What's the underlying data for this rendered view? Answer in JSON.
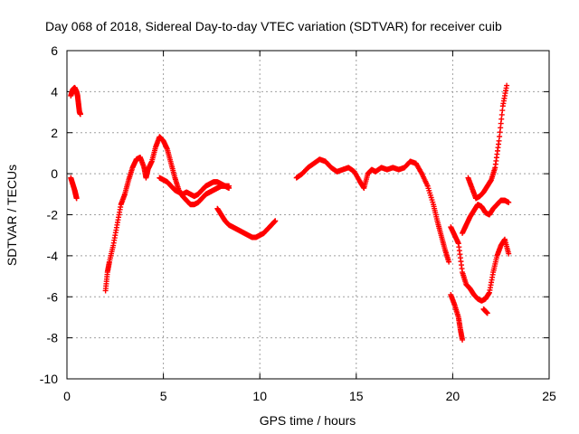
{
  "chart_data": {
    "type": "scatter",
    "title": "Day 068 of 2018, Sidereal Day-to-day VTEC variation (SDTVAR) for receiver cuib",
    "xlabel": "GPS time / hours",
    "ylabel": "SDTVAR / TECUs",
    "xlim": [
      0,
      25
    ],
    "ylim": [
      -10,
      6
    ],
    "xticks": [
      0,
      5,
      10,
      15,
      20,
      25
    ],
    "yticks": [
      -10,
      -8,
      -6,
      -4,
      -2,
      0,
      2,
      4,
      6
    ],
    "grid": true,
    "marker": "+",
    "color": "#ff0000",
    "series": [
      {
        "name": "seg1",
        "x": [
          0.2,
          0.3,
          0.4,
          0.5,
          0.55,
          0.6,
          0.65,
          0.7
        ],
        "y": [
          3.8,
          4.1,
          4.2,
          4.0,
          3.8,
          3.4,
          3.0,
          2.9
        ]
      },
      {
        "name": "seg2",
        "x": [
          0.2,
          0.3,
          0.4,
          0.45,
          0.5
        ],
        "y": [
          -0.2,
          -0.5,
          -0.8,
          -1.0,
          -1.2
        ]
      },
      {
        "name": "seg3",
        "x": [
          2.0,
          2.1,
          2.2,
          2.4,
          2.6,
          2.8,
          3.0,
          3.2,
          3.4,
          3.6,
          3.8,
          4.0,
          4.1,
          4.2,
          4.4,
          4.6,
          4.8,
          5.0,
          5.2,
          5.4,
          5.6,
          5.8,
          6.0,
          6.2,
          6.4,
          6.6,
          6.8,
          7.0,
          7.2,
          7.4,
          7.6,
          7.8,
          8.0,
          8.2,
          8.4
        ],
        "y": [
          -5.7,
          -4.8,
          -4.3,
          -3.5,
          -2.5,
          -1.5,
          -1.0,
          -0.3,
          0.3,
          0.7,
          0.8,
          0.3,
          -0.2,
          0.2,
          0.6,
          1.3,
          1.8,
          1.6,
          1.2,
          0.5,
          -0.2,
          -0.8,
          -1.1,
          -1.3,
          -1.5,
          -1.5,
          -1.4,
          -1.2,
          -1.0,
          -0.9,
          -0.8,
          -0.7,
          -0.6,
          -0.6,
          -0.7
        ]
      },
      {
        "name": "seg4",
        "x": [
          4.8,
          5.0,
          5.2,
          5.4,
          5.6,
          5.8,
          6.0,
          6.2,
          6.4,
          6.6,
          6.8,
          7.0,
          7.2,
          7.4,
          7.6,
          7.8,
          8.0,
          8.2,
          8.4
        ],
        "y": [
          -0.2,
          -0.3,
          -0.4,
          -0.6,
          -0.8,
          -0.9,
          -1.0,
          -0.9,
          -1.0,
          -1.1,
          -1.0,
          -0.8,
          -0.6,
          -0.5,
          -0.4,
          -0.4,
          -0.5,
          -0.6,
          -0.6
        ]
      },
      {
        "name": "seg5",
        "x": [
          7.8,
          8.0,
          8.2,
          8.4,
          8.6,
          8.8,
          9.0,
          9.2,
          9.4,
          9.6,
          9.8,
          10.0,
          10.2,
          10.4,
          10.6,
          10.8
        ],
        "y": [
          -1.7,
          -2.0,
          -2.3,
          -2.5,
          -2.6,
          -2.7,
          -2.8,
          -2.9,
          -3.0,
          -3.1,
          -3.1,
          -3.0,
          -2.9,
          -2.7,
          -2.5,
          -2.3
        ]
      },
      {
        "name": "seg6",
        "x": [
          11.9,
          12.2,
          12.5,
          12.8,
          13.1,
          13.4,
          13.7,
          14.0,
          14.3,
          14.6,
          14.9,
          15.2,
          15.4,
          15.6,
          15.8,
          16.0,
          16.3,
          16.6,
          16.9,
          17.2,
          17.5,
          17.8,
          18.1,
          18.4,
          18.7,
          19.0,
          19.2,
          19.4,
          19.6,
          19.8
        ],
        "y": [
          -0.2,
          0.0,
          0.3,
          0.5,
          0.7,
          0.6,
          0.3,
          0.1,
          0.2,
          0.3,
          0.1,
          -0.4,
          -0.7,
          0.0,
          0.2,
          0.1,
          0.3,
          0.2,
          0.3,
          0.2,
          0.3,
          0.6,
          0.5,
          0.0,
          -0.6,
          -1.5,
          -2.3,
          -3.0,
          -3.7,
          -4.3
        ]
      },
      {
        "name": "seg7",
        "x": [
          19.9,
          20.1,
          20.3,
          20.4,
          20.5
        ],
        "y": [
          -5.9,
          -6.4,
          -7.0,
          -7.6,
          -8.1
        ]
      },
      {
        "name": "seg8",
        "x": [
          19.9,
          20.1,
          20.3,
          20.5,
          20.7,
          20.9,
          21.1,
          21.3,
          21.5,
          21.7,
          21.9,
          22.1,
          22.3,
          22.5,
          22.7,
          22.9
        ],
        "y": [
          -2.6,
          -3.0,
          -3.4,
          -4.8,
          -5.4,
          -5.6,
          -5.9,
          -6.1,
          -6.2,
          -6.1,
          -5.8,
          -4.8,
          -4.0,
          -3.5,
          -3.2,
          -3.9
        ]
      },
      {
        "name": "seg9",
        "x": [
          20.5,
          20.7,
          20.9,
          21.1,
          21.3,
          21.5,
          21.7,
          21.9,
          22.1,
          22.3,
          22.5,
          22.7,
          22.9
        ],
        "y": [
          -2.9,
          -2.5,
          -2.1,
          -1.8,
          -1.5,
          -1.6,
          -1.9,
          -2.0,
          -1.7,
          -1.5,
          -1.3,
          -1.3,
          -1.4
        ]
      },
      {
        "name": "seg10",
        "x": [
          20.8,
          21.0,
          21.2,
          21.4,
          21.6,
          21.8,
          22.0,
          22.2,
          22.4,
          22.6,
          22.8
        ],
        "y": [
          -0.2,
          -0.7,
          -1.2,
          -1.1,
          -0.9,
          -0.6,
          -0.3,
          0.3,
          1.6,
          3.3,
          4.3
        ]
      },
      {
        "name": "seg11",
        "x": [
          21.6,
          21.8
        ],
        "y": [
          -6.6,
          -6.8
        ]
      }
    ]
  }
}
